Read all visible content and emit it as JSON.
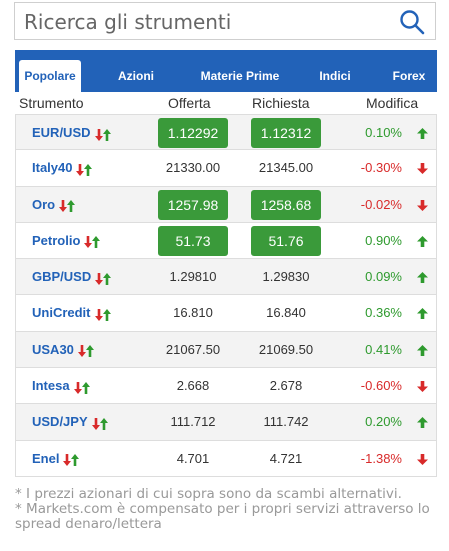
{
  "search": {
    "placeholder": "Ricerca gli strumenti",
    "icon": "search-icon"
  },
  "tabs": [
    {
      "label": "Popolare",
      "active": true
    },
    {
      "label": "Azioni",
      "active": false
    },
    {
      "label": "Materie Prime",
      "active": false
    },
    {
      "label": "Indici",
      "active": false
    },
    {
      "label": "Forex",
      "active": false
    }
  ],
  "columns": {
    "instrument": "Strumento",
    "bid": "Offerta",
    "ask": "Richiesta",
    "change": "Modifica"
  },
  "rows": [
    {
      "name": "EUR/USD",
      "bid": "1.12292",
      "ask": "1.12312",
      "change": "0.10%",
      "direction": "up",
      "highlight": true
    },
    {
      "name": "Italy40",
      "bid": "21330.00",
      "ask": "21345.00",
      "change": "-0.30%",
      "direction": "down",
      "highlight": false
    },
    {
      "name": "Oro",
      "bid": "1257.98",
      "ask": "1258.68",
      "change": "-0.02%",
      "direction": "down",
      "highlight": true
    },
    {
      "name": "Petrolio",
      "bid": "51.73",
      "ask": "51.76",
      "change": "0.90%",
      "direction": "up",
      "highlight": true
    },
    {
      "name": "GBP/USD",
      "bid": "1.29810",
      "ask": "1.29830",
      "change": "0.09%",
      "direction": "up",
      "highlight": false
    },
    {
      "name": "UniCredit",
      "bid": "16.810",
      "ask": "16.840",
      "change": "0.36%",
      "direction": "up",
      "highlight": false
    },
    {
      "name": "USA30",
      "bid": "21067.50",
      "ask": "21069.50",
      "change": "0.41%",
      "direction": "up",
      "highlight": false
    },
    {
      "name": "Intesa",
      "bid": "2.668",
      "ask": "2.678",
      "change": "-0.60%",
      "direction": "down",
      "highlight": false
    },
    {
      "name": "USD/JPY",
      "bid": "111.712",
      "ask": "111.742",
      "change": "0.20%",
      "direction": "up",
      "highlight": false
    },
    {
      "name": "Enel",
      "bid": "4.701",
      "ask": "4.721",
      "change": "-1.38%",
      "direction": "down",
      "highlight": false
    }
  ],
  "footnotes": [
    "* I prezzi azionari di cui sopra sono da scambi alternativi.",
    "* Markets.com è compensato per i propri servizi attraverso lo spread denaro/lettera"
  ],
  "colors": {
    "brand": "#2262b8",
    "highlight": "#3a9a3a",
    "up": "#2e9a2e",
    "down": "#d82a2a"
  }
}
